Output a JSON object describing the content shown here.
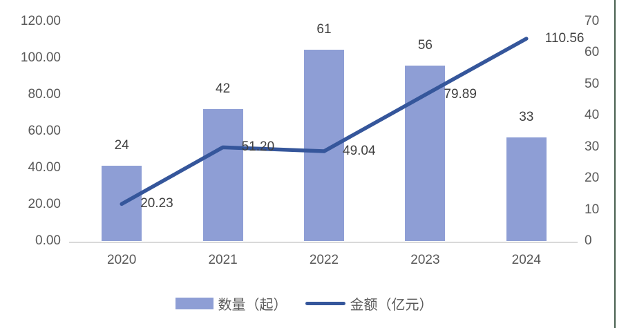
{
  "chart_data": {
    "type": "bar+line combo",
    "title": "",
    "categories": [
      "2020",
      "2021",
      "2022",
      "2023",
      "2024"
    ],
    "series": [
      {
        "name": "数量（起）",
        "type": "bar",
        "axis": "right",
        "values": [
          24,
          42,
          61,
          56,
          33
        ],
        "labels": [
          "24",
          "42",
          "61",
          "56",
          "33"
        ],
        "color": "#8e9ed5"
      },
      {
        "name": "金额（亿元）",
        "type": "line",
        "axis": "left",
        "values": [
          20.23,
          51.2,
          49.04,
          79.89,
          110.56
        ],
        "labels": [
          "20.23",
          "51.20",
          "49.04",
          "79.89",
          "110.56"
        ],
        "color": "#35569b"
      }
    ],
    "left_axis": {
      "min": 0,
      "max": 120,
      "step": 20,
      "tick_labels": [
        "0.00",
        "20.00",
        "40.00",
        "60.00",
        "80.00",
        "100.00",
        "120.00"
      ]
    },
    "right_axis": {
      "min": 0,
      "max": 70,
      "step": 10,
      "tick_labels": [
        "0",
        "10",
        "20",
        "30",
        "40",
        "50",
        "60",
        "70"
      ]
    },
    "grid": false,
    "legend_position": "bottom"
  },
  "colors": {
    "bar_fill": "#8e9ed5",
    "line_stroke": "#35569b",
    "axis_line": "#d9d9d9",
    "tick_text": "#595959",
    "data_label_text": "#404040",
    "edge_artifact": "#48604f"
  }
}
